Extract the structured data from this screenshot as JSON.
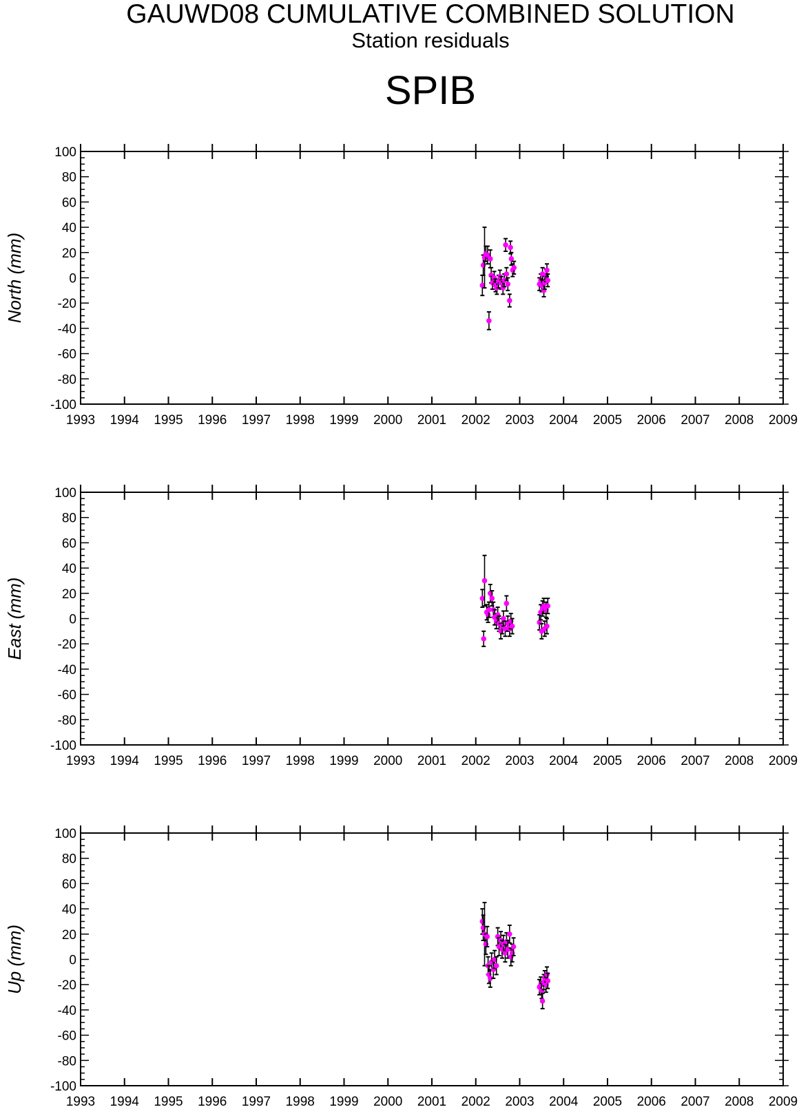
{
  "header": {
    "title": "GAUWD08 CUMULATIVE COMBINED SOLUTION",
    "subtitle": "Station residuals",
    "station": "SPIB"
  },
  "colors": {
    "point": "#ff00ff",
    "errorbar": "#000000",
    "axis": "#000000"
  },
  "chart_data": [
    {
      "type": "scatter",
      "ylabel": "North (mm)",
      "xlim": [
        1993,
        2009
      ],
      "ylim": [
        -100,
        100
      ],
      "xticks": [
        "1993",
        "1994",
        "1995",
        "1996",
        "1997",
        "1998",
        "1999",
        "2000",
        "2001",
        "2002",
        "2003",
        "2004",
        "2005",
        "2006",
        "2007",
        "2008",
        "2009"
      ],
      "yticks": [
        "-100",
        "-80",
        "-60",
        "-40",
        "-20",
        "0",
        "20",
        "40",
        "60",
        "80",
        "100"
      ],
      "grid": false,
      "points": [
        {
          "x": 2002.15,
          "y": -6,
          "err": 8
        },
        {
          "x": 2002.17,
          "y": 10,
          "err": 8
        },
        {
          "x": 2002.2,
          "y": 16,
          "err": 24
        },
        {
          "x": 2002.23,
          "y": 19,
          "err": 6
        },
        {
          "x": 2002.27,
          "y": 18,
          "err": 7
        },
        {
          "x": 2002.3,
          "y": -34,
          "err": 7
        },
        {
          "x": 2002.33,
          "y": 15,
          "err": 7
        },
        {
          "x": 2002.35,
          "y": 2,
          "err": 6
        },
        {
          "x": 2002.38,
          "y": -4,
          "err": 5
        },
        {
          "x": 2002.42,
          "y": 0,
          "err": 5
        },
        {
          "x": 2002.45,
          "y": -6,
          "err": 5
        },
        {
          "x": 2002.48,
          "y": -8,
          "err": 5
        },
        {
          "x": 2002.52,
          "y": -3,
          "err": 5
        },
        {
          "x": 2002.55,
          "y": 1,
          "err": 5
        },
        {
          "x": 2002.58,
          "y": -4,
          "err": 5
        },
        {
          "x": 2002.62,
          "y": -8,
          "err": 5
        },
        {
          "x": 2002.65,
          "y": -2,
          "err": 5
        },
        {
          "x": 2002.68,
          "y": 26,
          "err": 5
        },
        {
          "x": 2002.7,
          "y": 3,
          "err": 5
        },
        {
          "x": 2002.73,
          "y": -5,
          "err": 5
        },
        {
          "x": 2002.77,
          "y": -18,
          "err": 5
        },
        {
          "x": 2002.79,
          "y": 24,
          "err": 5
        },
        {
          "x": 2002.81,
          "y": 15,
          "err": 5
        },
        {
          "x": 2002.84,
          "y": 6,
          "err": 5
        },
        {
          "x": 2002.87,
          "y": 8,
          "err": 5
        },
        {
          "x": 2003.45,
          "y": -5,
          "err": 5
        },
        {
          "x": 2003.48,
          "y": -2,
          "err": 5
        },
        {
          "x": 2003.5,
          "y": -6,
          "err": 5
        },
        {
          "x": 2003.52,
          "y": 3,
          "err": 5
        },
        {
          "x": 2003.55,
          "y": -10,
          "err": 5
        },
        {
          "x": 2003.57,
          "y": -4,
          "err": 5
        },
        {
          "x": 2003.6,
          "y": 2,
          "err": 5
        },
        {
          "x": 2003.62,
          "y": 6,
          "err": 5
        },
        {
          "x": 2003.64,
          "y": -2,
          "err": 5
        }
      ]
    },
    {
      "type": "scatter",
      "ylabel": "East (mm)",
      "xlim": [
        1993,
        2009
      ],
      "ylim": [
        -100,
        100
      ],
      "xticks": [
        "1993",
        "1994",
        "1995",
        "1996",
        "1997",
        "1998",
        "1999",
        "2000",
        "2001",
        "2002",
        "2003",
        "2004",
        "2005",
        "2006",
        "2007",
        "2008",
        "2009"
      ],
      "yticks": [
        "-100",
        "-80",
        "-60",
        "-40",
        "-20",
        "0",
        "20",
        "40",
        "60",
        "80",
        "100"
      ],
      "grid": false,
      "points": [
        {
          "x": 2002.15,
          "y": 16,
          "err": 7
        },
        {
          "x": 2002.18,
          "y": -16,
          "err": 6
        },
        {
          "x": 2002.2,
          "y": 30,
          "err": 20
        },
        {
          "x": 2002.25,
          "y": 5,
          "err": 6
        },
        {
          "x": 2002.28,
          "y": 3,
          "err": 6
        },
        {
          "x": 2002.3,
          "y": 7,
          "err": 6
        },
        {
          "x": 2002.33,
          "y": 20,
          "err": 7
        },
        {
          "x": 2002.37,
          "y": 16,
          "err": 6
        },
        {
          "x": 2002.4,
          "y": 7,
          "err": 6
        },
        {
          "x": 2002.43,
          "y": 1,
          "err": 6
        },
        {
          "x": 2002.47,
          "y": -2,
          "err": 6
        },
        {
          "x": 2002.5,
          "y": 3,
          "err": 6
        },
        {
          "x": 2002.53,
          "y": -4,
          "err": 6
        },
        {
          "x": 2002.57,
          "y": -10,
          "err": 6
        },
        {
          "x": 2002.6,
          "y": -6,
          "err": 6
        },
        {
          "x": 2002.63,
          "y": 0,
          "err": 6
        },
        {
          "x": 2002.67,
          "y": -8,
          "err": 6
        },
        {
          "x": 2002.7,
          "y": 12,
          "err": 6
        },
        {
          "x": 2002.73,
          "y": -4,
          "err": 6
        },
        {
          "x": 2002.77,
          "y": -8,
          "err": 6
        },
        {
          "x": 2002.8,
          "y": -2,
          "err": 6
        },
        {
          "x": 2002.83,
          "y": -6,
          "err": 6
        },
        {
          "x": 2003.45,
          "y": -3,
          "err": 6
        },
        {
          "x": 2003.48,
          "y": 5,
          "err": 6
        },
        {
          "x": 2003.5,
          "y": -10,
          "err": 6
        },
        {
          "x": 2003.52,
          "y": 8,
          "err": 6
        },
        {
          "x": 2003.55,
          "y": 10,
          "err": 6
        },
        {
          "x": 2003.57,
          "y": -8,
          "err": 6
        },
        {
          "x": 2003.6,
          "y": 7,
          "err": 6
        },
        {
          "x": 2003.62,
          "y": -6,
          "err": 6
        },
        {
          "x": 2003.64,
          "y": 10,
          "err": 6
        }
      ]
    },
    {
      "type": "scatter",
      "ylabel": "Up (mm)",
      "xlim": [
        1993,
        2009
      ],
      "ylim": [
        -100,
        100
      ],
      "xticks": [
        "1993",
        "1994",
        "1995",
        "1996",
        "1997",
        "1998",
        "1999",
        "2000",
        "2001",
        "2002",
        "2003",
        "2004",
        "2005",
        "2006",
        "2007",
        "2008",
        "2009"
      ],
      "yticks": [
        "-100",
        "-80",
        "-60",
        "-40",
        "-20",
        "0",
        "20",
        "40",
        "60",
        "80",
        "100"
      ],
      "grid": false,
      "points": [
        {
          "x": 2002.15,
          "y": 30,
          "err": 10
        },
        {
          "x": 2002.17,
          "y": 25,
          "err": 10
        },
        {
          "x": 2002.2,
          "y": 20,
          "err": 25
        },
        {
          "x": 2002.23,
          "y": 12,
          "err": 8
        },
        {
          "x": 2002.26,
          "y": 18,
          "err": 8
        },
        {
          "x": 2002.28,
          "y": -5,
          "err": 7
        },
        {
          "x": 2002.3,
          "y": -12,
          "err": 7
        },
        {
          "x": 2002.33,
          "y": -15,
          "err": 7
        },
        {
          "x": 2002.36,
          "y": -2,
          "err": 7
        },
        {
          "x": 2002.4,
          "y": -8,
          "err": 7
        },
        {
          "x": 2002.43,
          "y": 0,
          "err": 7
        },
        {
          "x": 2002.47,
          "y": -5,
          "err": 7
        },
        {
          "x": 2002.5,
          "y": 18,
          "err": 7
        },
        {
          "x": 2002.53,
          "y": 10,
          "err": 7
        },
        {
          "x": 2002.57,
          "y": 15,
          "err": 7
        },
        {
          "x": 2002.6,
          "y": 8,
          "err": 7
        },
        {
          "x": 2002.63,
          "y": 12,
          "err": 7
        },
        {
          "x": 2002.67,
          "y": 5,
          "err": 7
        },
        {
          "x": 2002.7,
          "y": 14,
          "err": 7
        },
        {
          "x": 2002.73,
          "y": 8,
          "err": 7
        },
        {
          "x": 2002.77,
          "y": 20,
          "err": 7
        },
        {
          "x": 2002.8,
          "y": 2,
          "err": 7
        },
        {
          "x": 2002.83,
          "y": 5,
          "err": 7
        },
        {
          "x": 2002.86,
          "y": 10,
          "err": 7
        },
        {
          "x": 2003.45,
          "y": -22,
          "err": 6
        },
        {
          "x": 2003.48,
          "y": -20,
          "err": 6
        },
        {
          "x": 2003.5,
          "y": -25,
          "err": 6
        },
        {
          "x": 2003.52,
          "y": -33,
          "err": 6
        },
        {
          "x": 2003.55,
          "y": -18,
          "err": 6
        },
        {
          "x": 2003.57,
          "y": -15,
          "err": 6
        },
        {
          "x": 2003.6,
          "y": -20,
          "err": 6
        },
        {
          "x": 2003.62,
          "y": -12,
          "err": 6
        },
        {
          "x": 2003.64,
          "y": -17,
          "err": 6
        }
      ]
    }
  ]
}
